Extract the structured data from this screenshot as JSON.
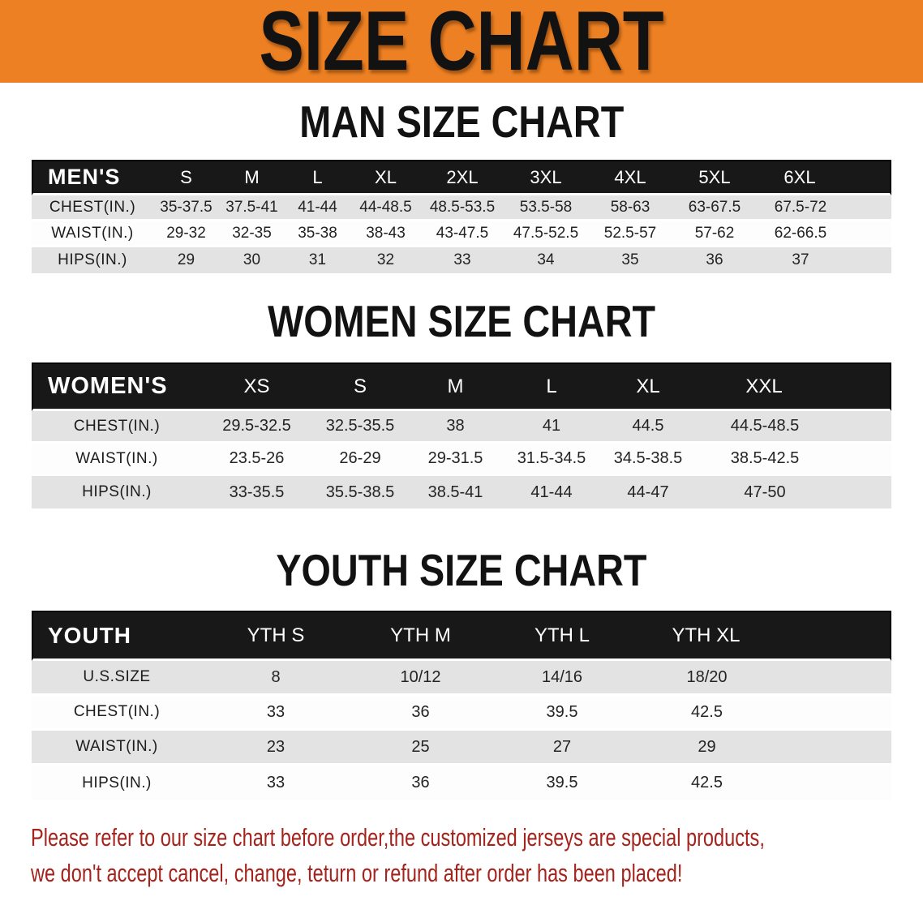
{
  "banner": {
    "title": "SIZE CHART",
    "bg_color": "#ED8022",
    "text_color": "#121212"
  },
  "colors": {
    "table_header_bg": "#181818",
    "row_stripe": "#E3E3E3",
    "disclaimer_red": "#A5231C"
  },
  "sections": [
    {
      "heading": "MAN SIZE CHART",
      "table": {
        "label": "MEN'S",
        "columns": [
          "S",
          "M",
          "L",
          "XL",
          "2XL",
          "3XL",
          "4XL",
          "5XL",
          "6XL"
        ],
        "rows": [
          {
            "label": "CHEST(IN.)",
            "values": [
              "35-37.5",
              "37.5-41",
              "41-44",
              "44-48.5",
              "48.5-53.5",
              "53.5-58",
              "58-63",
              "63-67.5",
              "67.5-72"
            ]
          },
          {
            "label": "WAIST(IN.)",
            "values": [
              "29-32",
              "32-35",
              "35-38",
              "38-43",
              "43-47.5",
              "47.5-52.5",
              "52.5-57",
              "57-62",
              "62-66.5"
            ]
          },
          {
            "label": "HIPS(IN.)",
            "values": [
              "29",
              "30",
              "31",
              "32",
              "33",
              "34",
              "35",
              "36",
              "37"
            ]
          }
        ]
      }
    },
    {
      "heading": "WOMEN SIZE CHART",
      "table": {
        "label": "WOMEN'S",
        "columns": [
          "XS",
          "S",
          "M",
          "L",
          "XL",
          "XXL"
        ],
        "rows": [
          {
            "label": "CHEST(IN.)",
            "values": [
              "29.5-32.5",
              "32.5-35.5",
              "38",
              "41",
              "44.5",
              "44.5-48.5"
            ]
          },
          {
            "label": "WAIST(IN.)",
            "values": [
              "23.5-26",
              "26-29",
              "29-31.5",
              "31.5-34.5",
              "34.5-38.5",
              "38.5-42.5"
            ]
          },
          {
            "label": "HIPS(IN.)",
            "values": [
              "33-35.5",
              "35.5-38.5",
              "38.5-41",
              "41-44",
              "44-47",
              "47-50"
            ]
          }
        ]
      }
    },
    {
      "heading": "YOUTH SIZE CHART",
      "table": {
        "label": "YOUTH",
        "columns": [
          "YTH S",
          "YTH M",
          "YTH L",
          "YTH XL"
        ],
        "rows": [
          {
            "label": "U.S.SIZE",
            "values": [
              "8",
              "10/12",
              "14/16",
              "18/20"
            ]
          },
          {
            "label": "CHEST(IN.)",
            "values": [
              "33",
              "36",
              "39.5",
              "42.5"
            ]
          },
          {
            "label": "WAIST(IN.)",
            "values": [
              "23",
              "25",
              "27",
              "29"
            ]
          },
          {
            "label": "HIPS(IN.)",
            "values": [
              "33",
              "36",
              "39.5",
              "42.5"
            ]
          }
        ]
      }
    }
  ],
  "disclaimer": {
    "line1": "Please refer to our size chart before order,the customized jerseys are special products,",
    "line2": "we don't accept cancel, change, teturn or refund after order has been placed!"
  }
}
